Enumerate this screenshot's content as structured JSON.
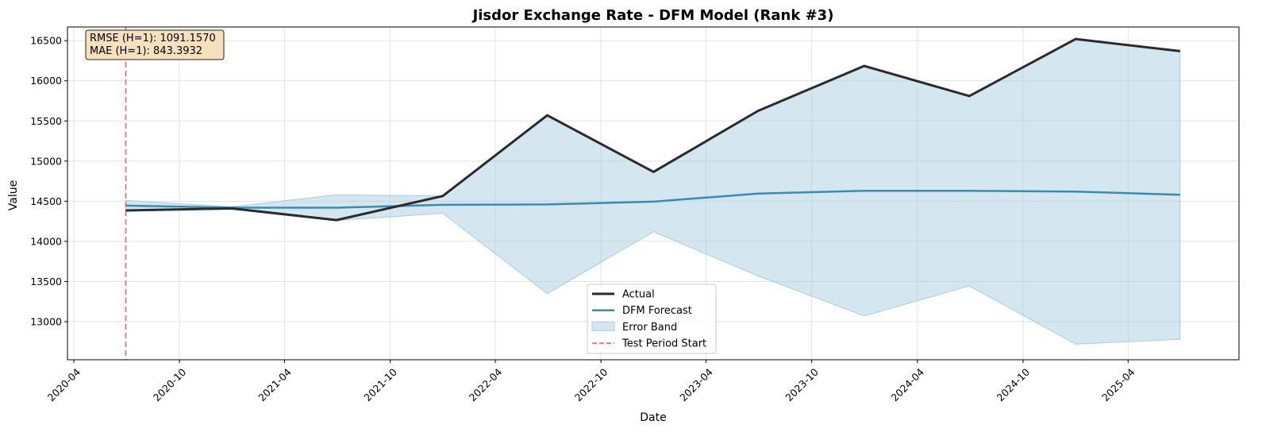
{
  "chart_data": {
    "type": "line",
    "title": "Jisdor Exchange Rate - DFM Model (Rank #3)",
    "xlabel": "Date",
    "ylabel": "Value",
    "x": [
      "2020-06-30",
      "2020-12-31",
      "2021-06-30",
      "2021-12-31",
      "2022-06-30",
      "2022-12-31",
      "2023-06-30",
      "2023-12-31",
      "2024-06-30",
      "2024-12-31",
      "2025-06-30"
    ],
    "series": [
      {
        "name": "Actual",
        "color": "#2b2b2b",
        "values": [
          14385,
          14410,
          14265,
          14565,
          15570,
          14865,
          15625,
          16185,
          15810,
          16520,
          16370
        ]
      },
      {
        "name": "DFM Forecast",
        "color": "#3a8bb1",
        "values": [
          14445,
          14420,
          14420,
          14455,
          14460,
          14495,
          14595,
          14630,
          14630,
          14620,
          14580
        ]
      }
    ],
    "error_band": {
      "name": "Error Band",
      "color": "#a9cde0",
      "lower": [
        14380,
        14415,
        14260,
        14350,
        13350,
        14120,
        13570,
        13070,
        13445,
        12720,
        12780
      ],
      "upper": [
        14510,
        14430,
        14580,
        14565,
        15570,
        14865,
        15625,
        16185,
        15810,
        16520,
        16370
      ]
    },
    "vline": {
      "name": "Test Period Start",
      "x": "2020-06-30",
      "color": "#ee6666"
    },
    "annotation": [
      "RMSE (H=1): 1091.1570",
      "MAE (H=1): 843.3932"
    ],
    "x_ticks": [
      "2020-04",
      "2020-10",
      "2021-04",
      "2021-10",
      "2022-04",
      "2022-10",
      "2023-04",
      "2023-10",
      "2024-04",
      "2024-10",
      "2025-04"
    ],
    "y_ticks": [
      13000,
      13500,
      14000,
      14500,
      15000,
      15500,
      16000,
      16500
    ],
    "xlim": [
      "2020-03-21",
      "2025-10-10"
    ],
    "ylim": [
      12525,
      16670
    ],
    "grid": true,
    "legend_position": "lower-center"
  }
}
